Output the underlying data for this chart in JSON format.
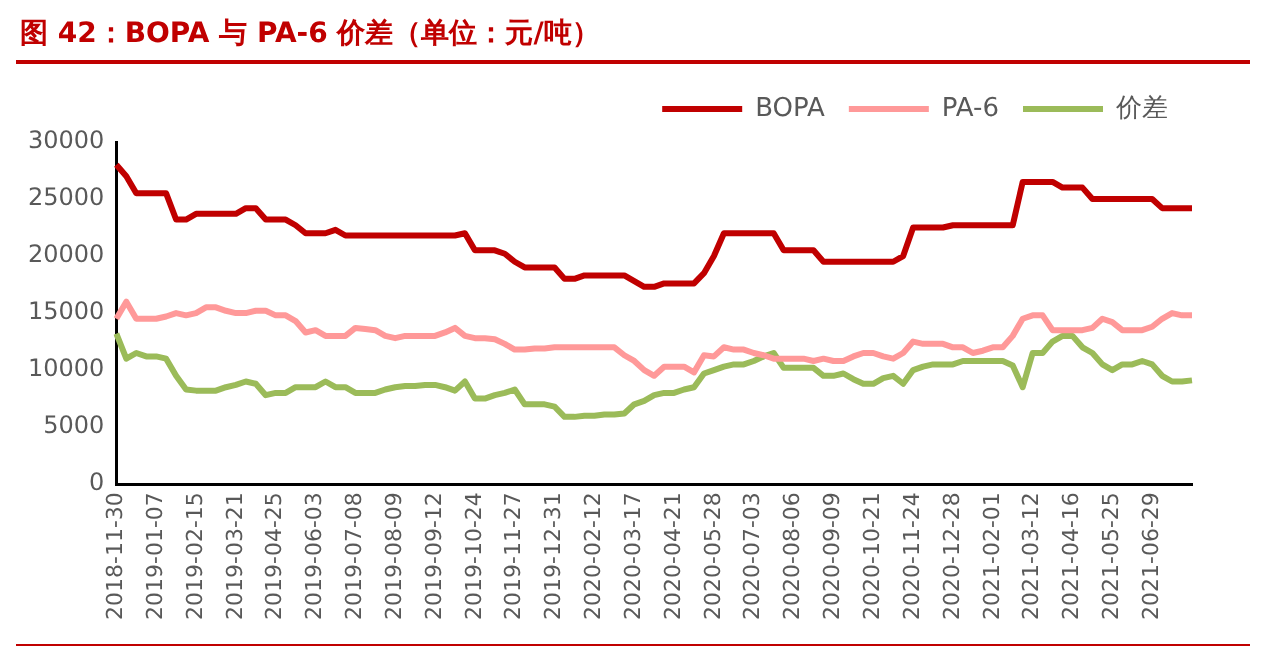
{
  "chart_data": {
    "type": "line",
    "title": "图 42：BOPA 与 PA-6 价差（单位：元/吨）",
    "categories": [
      "2018-11-30",
      null,
      null,
      null,
      "2019-01-07",
      null,
      null,
      null,
      "2019-02-15",
      null,
      null,
      null,
      "2019-03-21",
      null,
      null,
      null,
      "2019-04-25",
      null,
      null,
      null,
      "2019-06-03",
      null,
      null,
      null,
      "2019-07-08",
      null,
      null,
      null,
      "2019-08-09",
      null,
      null,
      null,
      "2019-09-12",
      null,
      null,
      null,
      "2019-10-24",
      null,
      null,
      null,
      "2019-11-27",
      null,
      null,
      null,
      "2019-12-31",
      null,
      null,
      null,
      "2020-02-12",
      null,
      null,
      null,
      "2020-03-17",
      null,
      null,
      null,
      "2020-04-21",
      null,
      null,
      null,
      "2020-05-28",
      null,
      null,
      null,
      "2020-07-03",
      null,
      null,
      null,
      "2020-08-06",
      null,
      null,
      null,
      "2020-09-09",
      null,
      null,
      null,
      "2020-10-21",
      null,
      null,
      null,
      "2020-11-24",
      null,
      null,
      null,
      "2020-12-28",
      null,
      null,
      null,
      "2021-02-01",
      null,
      null,
      null,
      "2021-03-12",
      null,
      null,
      null,
      "2021-04-16",
      null,
      null,
      null,
      "2021-05-25",
      null,
      null,
      null,
      "2021-06-29",
      null,
      null,
      null,
      null
    ],
    "series": [
      {
        "name": "BOPA",
        "color": "#c00000",
        "values": [
          28000,
          27000,
          25500,
          25500,
          25500,
          25500,
          23200,
          23200,
          23700,
          23700,
          23700,
          23700,
          23700,
          24200,
          24200,
          23200,
          23200,
          23200,
          22700,
          22000,
          22000,
          22000,
          22300,
          21800,
          21800,
          21800,
          21800,
          21800,
          21800,
          21800,
          21800,
          21800,
          21800,
          21800,
          21800,
          22000,
          20500,
          20500,
          20500,
          20200,
          19500,
          19000,
          19000,
          19000,
          19000,
          18000,
          18000,
          18300,
          18300,
          18300,
          18300,
          18300,
          17800,
          17300,
          17300,
          17600,
          17600,
          17600,
          17600,
          18500,
          20000,
          22000,
          22000,
          22000,
          22000,
          22000,
          22000,
          20500,
          20500,
          20500,
          20500,
          19500,
          19500,
          19500,
          19500,
          19500,
          19500,
          19500,
          19500,
          20000,
          22500,
          22500,
          22500,
          22500,
          22700,
          22700,
          22700,
          22700,
          22700,
          22700,
          22700,
          26500,
          26500,
          26500,
          26500,
          26000,
          26000,
          26000,
          25000,
          25000,
          25000,
          25000,
          25000,
          25000,
          25000,
          24200,
          24200,
          24200,
          24200
        ]
      },
      {
        "name": "PA-6",
        "color": "#ff9999",
        "values": [
          14500,
          16000,
          14500,
          14500,
          14500,
          14700,
          15000,
          14800,
          15000,
          15500,
          15500,
          15200,
          15000,
          15000,
          15200,
          15200,
          14800,
          14800,
          14300,
          13300,
          13500,
          13000,
          13000,
          13000,
          13700,
          13600,
          13500,
          13000,
          12800,
          13000,
          13000,
          13000,
          13000,
          13300,
          13700,
          13000,
          12800,
          12800,
          12700,
          12300,
          11800,
          11800,
          11900,
          11900,
          12000,
          12000,
          12000,
          12000,
          12000,
          12000,
          12000,
          11300,
          10800,
          10000,
          9500,
          10300,
          10300,
          10300,
          9800,
          11300,
          11200,
          12000,
          11800,
          11800,
          11500,
          11300,
          11000,
          11000,
          11000,
          11000,
          10800,
          11000,
          10800,
          10800,
          11200,
          11500,
          11500,
          11200,
          11000,
          11500,
          12500,
          12300,
          12300,
          12300,
          12000,
          12000,
          11500,
          11700,
          12000,
          12000,
          13000,
          14500,
          14800,
          14800,
          13500,
          13500,
          13500,
          13500,
          13700,
          14500,
          14200,
          13500,
          13500,
          13500,
          13800,
          14500,
          15000,
          14800,
          14800
        ]
      },
      {
        "name": "价差",
        "color": "#9bbb59",
        "values": [
          13200,
          11000,
          11500,
          11200,
          11200,
          11000,
          9500,
          8300,
          8200,
          8200,
          8200,
          8500,
          8700,
          9000,
          8800,
          7800,
          8000,
          8000,
          8500,
          8500,
          8500,
          9000,
          8500,
          8500,
          8000,
          8000,
          8000,
          8300,
          8500,
          8600,
          8600,
          8700,
          8700,
          8500,
          8200,
          9000,
          7500,
          7500,
          7800,
          8000,
          8300,
          7000,
          7000,
          7000,
          6800,
          5900,
          5900,
          6000,
          6000,
          6100,
          6100,
          6200,
          7000,
          7300,
          7800,
          8000,
          8000,
          8300,
          8500,
          9700,
          10000,
          10300,
          10500,
          10500,
          10800,
          11200,
          11500,
          10200,
          10200,
          10200,
          10200,
          9500,
          9500,
          9700,
          9200,
          8800,
          8800,
          9300,
          9500,
          8800,
          10000,
          10300,
          10500,
          10500,
          10500,
          10800,
          10800,
          10800,
          10800,
          10800,
          10400,
          8500,
          11500,
          11500,
          12500,
          13000,
          13000,
          12000,
          11500,
          10500,
          10000,
          10500,
          10500,
          10800,
          10500,
          9500,
          9000,
          9000,
          9100
        ]
      }
    ],
    "ylim": [
      0,
      30000
    ],
    "yticks": [
      0,
      5000,
      10000,
      15000,
      20000,
      25000,
      30000
    ],
    "grid": false,
    "legend": "top right",
    "marker": "none",
    "line_style": "solid"
  }
}
